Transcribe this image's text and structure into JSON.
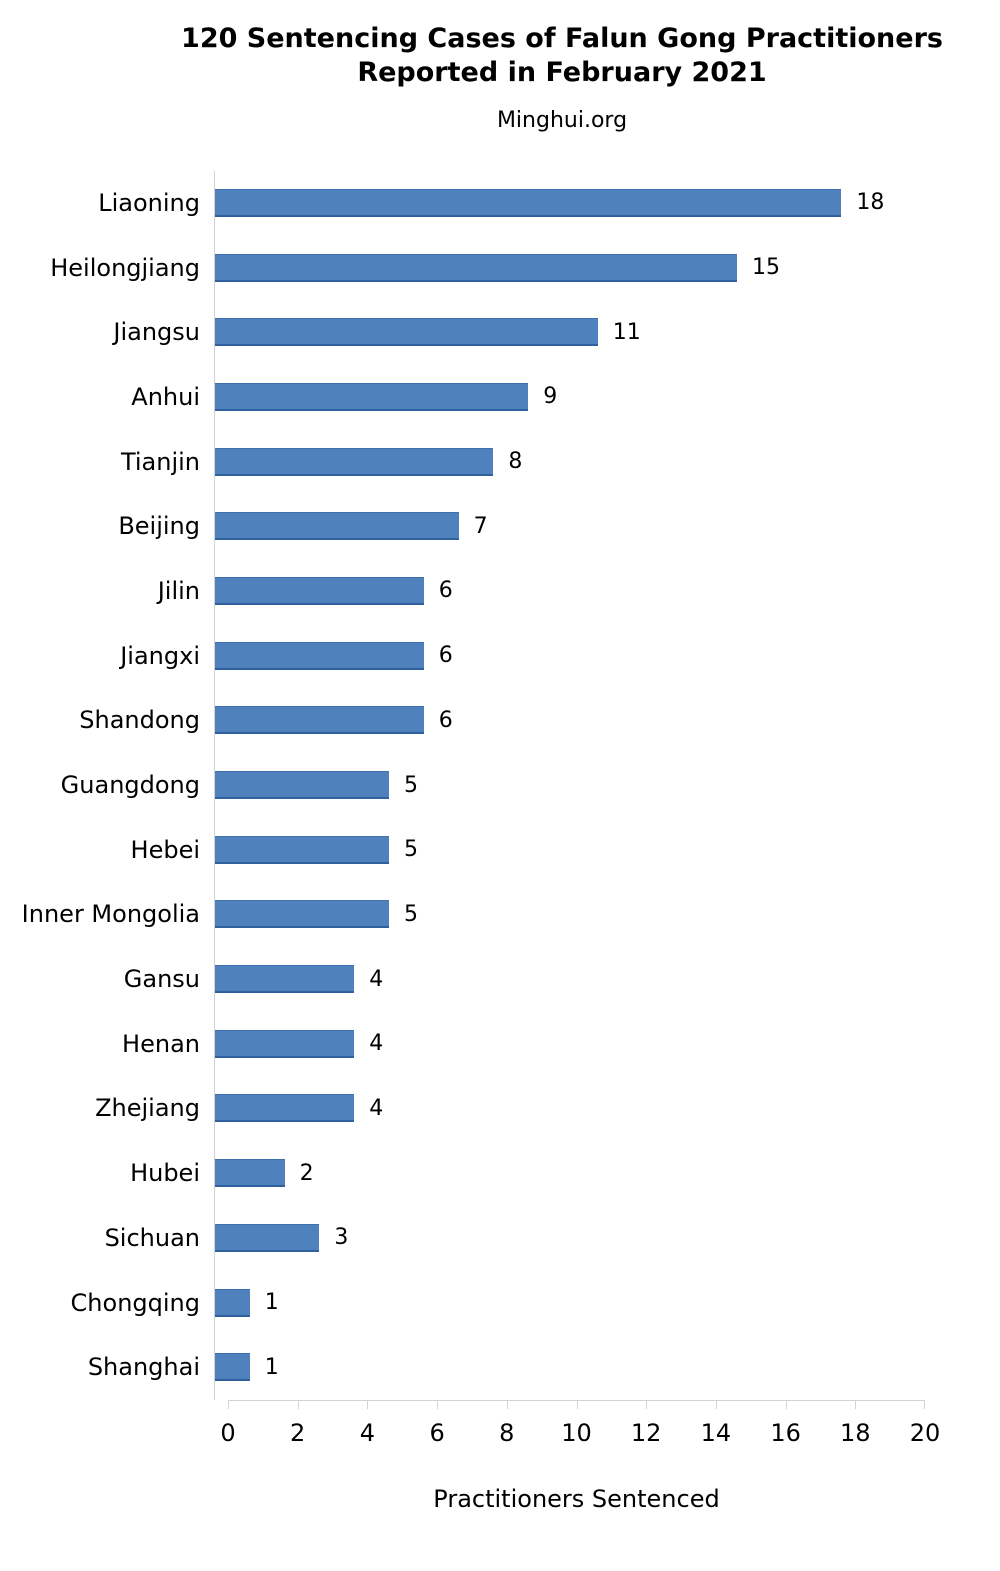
{
  "title": {
    "line1": "120 Sentencing Cases of Falun Gong Practitioners",
    "line2": "Reported in February 2021"
  },
  "subtitle": "Minghui.org",
  "chart_data": {
    "type": "bar",
    "orientation": "horizontal",
    "title": "120 Sentencing Cases of Falun Gong Practitioners Reported in February 2021",
    "subtitle": "Minghui.org",
    "xlabel": "Practitioners Sentenced",
    "ylabel": "",
    "xlim": [
      0,
      20
    ],
    "xticks": [
      0,
      2,
      4,
      6,
      8,
      10,
      12,
      14,
      16,
      18,
      20
    ],
    "grid": false,
    "legend": false,
    "value_labels": true,
    "categories": [
      "Liaoning",
      "Heilongjiang",
      "Jiangsu",
      "Anhui",
      "Tianjin",
      "Beijing",
      "Jilin",
      "Jiangxi",
      "Shandong",
      "Guangdong",
      "Hebei",
      "Inner Mongolia",
      "Gansu",
      "Henan",
      "Zhejiang",
      "Hubei",
      "Sichuan",
      "Chongqing",
      "Shanghai"
    ],
    "values": [
      18,
      15,
      11,
      9,
      8,
      7,
      6,
      6,
      6,
      5,
      5,
      5,
      4,
      4,
      4,
      2,
      3,
      1,
      1
    ],
    "total_cases": 120,
    "colors": {
      "bar_fill": "#4f81bd",
      "bar_edge_top": "#3e70ad",
      "bar_edge_bottom": "#30619f",
      "axis_line": "#d3d3d3",
      "text": "#000000",
      "background": "#ffffff"
    }
  }
}
